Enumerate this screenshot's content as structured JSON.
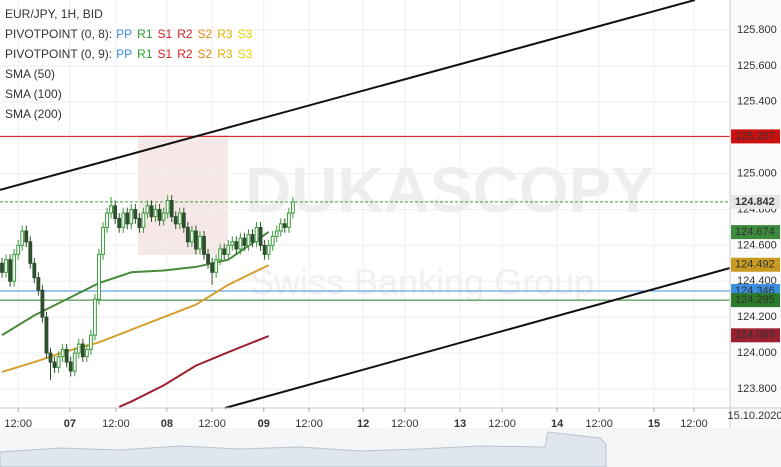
{
  "chart_data": {
    "type": "candlestick",
    "title": "EUR/JPY, 1H, BID",
    "indicators": [
      {
        "label": "PIVOTPOINT (0, 8):",
        "items": [
          {
            "text": "PP",
            "color": "#3b8fe0"
          },
          {
            "text": "R1",
            "color": "#2a9d2a"
          },
          {
            "text": "S1",
            "color": "#d02020"
          },
          {
            "text": "R2",
            "color": "#d02020"
          },
          {
            "text": "S2",
            "color": "#e08a10"
          },
          {
            "text": "R3",
            "color": "#e0b000"
          },
          {
            "text": "S3",
            "color": "#e8d000"
          }
        ]
      },
      {
        "label": "PIVOTPOINT (0, 9):",
        "items": [
          {
            "text": "PP",
            "color": "#3b8fe0"
          },
          {
            "text": "R1",
            "color": "#2a9d2a"
          },
          {
            "text": "S1",
            "color": "#d02020"
          },
          {
            "text": "R2",
            "color": "#d02020"
          },
          {
            "text": "S2",
            "color": "#e08a10"
          },
          {
            "text": "R3",
            "color": "#e0b000"
          },
          {
            "text": "S3",
            "color": "#e8d000"
          }
        ]
      }
    ],
    "watermark": "DUKASCOPY",
    "watermark_subtitle": "Swiss Banking Group",
    "date_label": "15.10.2020",
    "up_color": "#3c9a3c",
    "down_color": "#2f4f2f",
    "x": [
      0,
      1,
      2,
      3,
      4,
      5,
      6,
      7,
      8,
      9,
      10,
      11,
      12,
      13,
      14,
      15,
      16,
      17,
      18,
      19,
      20,
      21,
      22,
      23,
      24,
      25,
      26,
      27,
      28,
      29,
      30,
      31,
      32,
      33,
      34,
      35,
      36,
      37,
      38,
      39,
      40,
      41,
      42,
      43,
      44,
      45,
      46,
      47,
      48,
      49,
      50,
      51,
      52,
      53,
      54,
      55,
      56,
      57,
      58,
      59,
      60,
      61,
      62,
      63,
      64,
      65,
      66,
      67,
      68,
      69,
      70,
      71,
      72
    ],
    "open": [
      124.5,
      124.45,
      124.52,
      124.4,
      124.55,
      124.6,
      124.68,
      124.62,
      124.5,
      124.42,
      124.35,
      124.2,
      124.0,
      123.95,
      123.92,
      123.98,
      124.02,
      123.95,
      123.9,
      124.0,
      124.05,
      123.98,
      124.02,
      124.1,
      124.3,
      124.55,
      124.7,
      124.78,
      124.82,
      124.75,
      124.7,
      124.78,
      124.72,
      124.8,
      124.75,
      124.7,
      124.78,
      124.82,
      124.76,
      124.8,
      124.74,
      124.78,
      124.85,
      124.76,
      124.72,
      124.78,
      124.7,
      124.62,
      124.68,
      124.58,
      124.65,
      124.55,
      124.5,
      124.45,
      124.52,
      124.58,
      124.55,
      124.6,
      124.62,
      124.58,
      124.64,
      124.6,
      124.66,
      124.62,
      124.7,
      124.6,
      124.55,
      124.6,
      124.65,
      124.68,
      124.72,
      124.7,
      124.78
    ],
    "high": [
      124.53,
      124.55,
      124.55,
      124.58,
      124.63,
      124.71,
      124.71,
      124.65,
      124.53,
      124.45,
      124.38,
      124.23,
      124.03,
      123.98,
      124.01,
      124.05,
      124.05,
      123.98,
      124.03,
      124.08,
      124.08,
      124.05,
      124.13,
      124.33,
      124.58,
      124.73,
      124.81,
      124.87,
      124.85,
      124.78,
      124.81,
      124.81,
      124.83,
      124.83,
      124.78,
      124.81,
      124.85,
      124.85,
      124.83,
      124.83,
      124.81,
      124.88,
      124.88,
      124.79,
      124.81,
      124.81,
      124.73,
      124.71,
      124.71,
      124.68,
      124.68,
      124.58,
      124.53,
      124.55,
      124.61,
      124.61,
      124.63,
      124.65,
      124.65,
      124.67,
      124.67,
      124.69,
      124.69,
      124.73,
      124.73,
      124.63,
      124.63,
      124.68,
      124.71,
      124.75,
      124.75,
      124.81,
      124.87
    ],
    "low": [
      124.42,
      124.42,
      124.37,
      124.37,
      124.52,
      124.57,
      124.59,
      124.47,
      124.39,
      124.32,
      124.17,
      123.97,
      123.85,
      123.89,
      123.89,
      123.95,
      123.92,
      123.87,
      123.87,
      123.97,
      123.95,
      123.95,
      123.99,
      124.07,
      124.27,
      124.52,
      124.67,
      124.75,
      124.72,
      124.67,
      124.67,
      124.69,
      124.69,
      124.72,
      124.67,
      124.67,
      124.75,
      124.73,
      124.73,
      124.71,
      124.71,
      124.75,
      124.73,
      124.69,
      124.69,
      124.67,
      124.59,
      124.59,
      124.55,
      124.55,
      124.52,
      124.47,
      124.38,
      124.42,
      124.49,
      124.52,
      124.52,
      124.57,
      124.55,
      124.55,
      124.57,
      124.57,
      124.59,
      124.59,
      124.57,
      124.52,
      124.52,
      124.57,
      124.62,
      124.65,
      124.67,
      124.67,
      124.75
    ],
    "close": [
      124.45,
      124.52,
      124.4,
      124.55,
      124.6,
      124.68,
      124.62,
      124.5,
      124.42,
      124.35,
      124.2,
      124.0,
      123.95,
      123.92,
      123.98,
      124.02,
      123.95,
      123.9,
      124.0,
      124.05,
      123.98,
      124.02,
      124.1,
      124.3,
      124.55,
      124.7,
      124.78,
      124.82,
      124.75,
      124.7,
      124.78,
      124.72,
      124.8,
      124.75,
      124.7,
      124.78,
      124.82,
      124.76,
      124.8,
      124.74,
      124.78,
      124.85,
      124.76,
      124.72,
      124.78,
      124.7,
      124.62,
      124.68,
      124.58,
      124.65,
      124.55,
      124.5,
      124.45,
      124.52,
      124.58,
      124.55,
      124.6,
      124.62,
      124.58,
      124.64,
      124.6,
      124.66,
      124.62,
      124.7,
      124.6,
      124.55,
      124.6,
      124.65,
      124.68,
      124.72,
      124.7,
      124.78,
      124.842
    ],
    "series": [
      {
        "name": "SMA (50)",
        "color": "#4a8a3a",
        "x": [
          0,
          8,
          16,
          24,
          32,
          40,
          48,
          56,
          66
        ],
        "values": [
          124.1,
          124.21,
          124.3,
          124.39,
          124.45,
          124.46,
          124.48,
          124.52,
          124.675
        ]
      },
      {
        "name": "SMA (100)",
        "color": "#d4a030",
        "x": [
          0,
          8,
          16,
          24,
          32,
          40,
          48,
          56,
          66
        ],
        "values": [
          123.895,
          123.95,
          124.01,
          124.06,
          124.13,
          124.2,
          124.27,
          124.38,
          124.49
        ]
      },
      {
        "name": "SMA (200)",
        "color": "#9a2030",
        "x": [
          29,
          32,
          40,
          48,
          56,
          66
        ],
        "values": [
          123.7,
          123.73,
          123.82,
          123.93,
          124.005,
          124.095
        ]
      }
    ],
    "trendlines": [
      {
        "x": [
          -0.5,
          171.5
        ],
        "values": [
          124.909,
          125.967
        ]
      },
      {
        "x": [
          55.2,
          180.2
        ],
        "values": [
          123.694,
          124.474
        ]
      }
    ],
    "price_labels": [
      {
        "value": 125.207,
        "color": "#cc1010",
        "text_color": "#ffffff",
        "line": true
      },
      {
        "value": 124.842,
        "color": "#e4e8e4",
        "text_color": "#333333",
        "line": true
      },
      {
        "value": 124.674,
        "color": "#3c8a3c",
        "text_color": "#ffffff",
        "line": false
      },
      {
        "value": 124.492,
        "color": "#c89a20",
        "text_color": "#ffffff",
        "line": false
      },
      {
        "value": 124.346,
        "color": "#3b8fe0",
        "text_color": "#ffffff",
        "line": true
      },
      {
        "value": 124.295,
        "color": "#2a7a2a",
        "text_color": "#ffffff",
        "line": true
      },
      {
        "value": 124.099,
        "color": "#9a2030",
        "text_color": "#ffffff",
        "line": false
      }
    ],
    "xlim": [
      -0.5,
      180.2
    ],
    "ylim": [
      123.694,
      125.967
    ],
    "yticks": [
      {
        "value": 123.8,
        "label": "123.800"
      },
      {
        "value": 124.0,
        "label": "124.000"
      },
      {
        "value": 124.2,
        "label": "124.200"
      },
      {
        "value": 124.4,
        "label": "124.400"
      },
      {
        "value": 124.6,
        "label": "124.600"
      },
      {
        "value": 124.8,
        "label": "124.800"
      },
      {
        "value": 125.0,
        "label": "125.000"
      },
      {
        "value": 125.4,
        "label": "125.400"
      },
      {
        "value": 125.6,
        "label": "125.600"
      },
      {
        "value": 125.8,
        "label": "125.800"
      }
    ],
    "xticks": [
      {
        "value": 4,
        "label": "12:00"
      },
      {
        "value": 16.8,
        "label": "07"
      },
      {
        "value": 28.2,
        "label": "12:00"
      },
      {
        "value": 40.8,
        "label": "08"
      },
      {
        "value": 52,
        "label": "12:00"
      },
      {
        "value": 64.8,
        "label": "09"
      },
      {
        "value": 76,
        "label": "12:00"
      },
      {
        "value": 89.4,
        "label": "12"
      },
      {
        "value": 99.7,
        "label": "12:00"
      },
      {
        "value": 113.4,
        "label": "13"
      },
      {
        "value": 123.8,
        "label": "12:00"
      },
      {
        "value": 137.4,
        "label": "14"
      },
      {
        "value": 147.8,
        "label": "12:00"
      },
      {
        "value": 161.4,
        "label": "15"
      },
      {
        "value": 171.3,
        "label": "12:00"
      }
    ],
    "grid": true
  }
}
